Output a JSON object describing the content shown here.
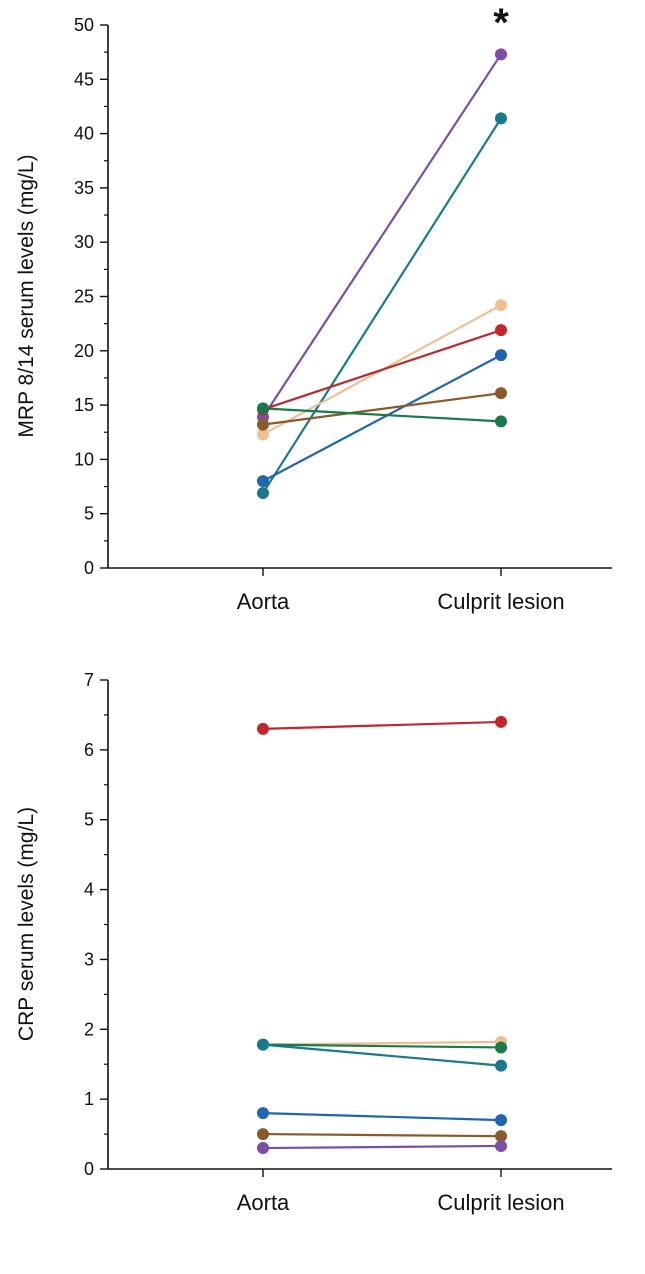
{
  "chart_data": [
    {
      "type": "line",
      "title": "",
      "xlabel": "",
      "ylabel": "MRP 8/14 serum levels (mg/L)",
      "categories": [
        "Aorta",
        "Culprit lesion"
      ],
      "ylim": [
        0,
        50
      ],
      "yticks": [
        0,
        5,
        10,
        15,
        20,
        25,
        30,
        35,
        40,
        45,
        50
      ],
      "yticks_labels": [
        "0",
        "5",
        "10",
        "15",
        "20",
        "25",
        "30",
        "35",
        "40",
        "45",
        "50"
      ],
      "minor_tick_step": 2.5,
      "grid": false,
      "annotation": "*",
      "series": [
        {
          "color": "#7b4fa6",
          "values": [
            13.9,
            47.3
          ]
        },
        {
          "color": "#1a7a8c",
          "values": [
            6.9,
            41.4
          ]
        },
        {
          "color": "#eebf91",
          "values": [
            12.3,
            24.2
          ]
        },
        {
          "color": "#c0272d",
          "values": [
            14.6,
            21.9
          ]
        },
        {
          "color": "#2166ac",
          "values": [
            8.0,
            19.6
          ]
        },
        {
          "color": "#8b5a2b",
          "values": [
            13.2,
            16.1
          ]
        },
        {
          "color": "#1a7a4a",
          "values": [
            14.7,
            13.5
          ]
        }
      ]
    },
    {
      "type": "line",
      "title": "",
      "xlabel": "",
      "ylabel": "CRP serum levels (mg/L)",
      "categories": [
        "Aorta",
        "Culprit lesion"
      ],
      "ylim": [
        0,
        7
      ],
      "yticks": [
        0,
        1,
        2,
        3,
        4,
        5,
        6,
        7
      ],
      "yticks_labels": [
        "0",
        "1",
        "2",
        "3",
        "4",
        "5",
        "6",
        "7"
      ],
      "minor_tick_step": 0.5,
      "grid": false,
      "series": [
        {
          "color": "#c0272d",
          "values": [
            6.3,
            6.4
          ]
        },
        {
          "color": "#eebf91",
          "values": [
            1.78,
            1.82
          ]
        },
        {
          "color": "#1a7a4a",
          "values": [
            1.78,
            1.74
          ]
        },
        {
          "color": "#1a7a8c",
          "values": [
            1.78,
            1.48
          ]
        },
        {
          "color": "#2166ac",
          "values": [
            0.8,
            0.7
          ]
        },
        {
          "color": "#8b5a2b",
          "values": [
            0.5,
            0.47
          ]
        },
        {
          "color": "#7b4fa6",
          "values": [
            0.3,
            0.33
          ]
        }
      ]
    }
  ]
}
